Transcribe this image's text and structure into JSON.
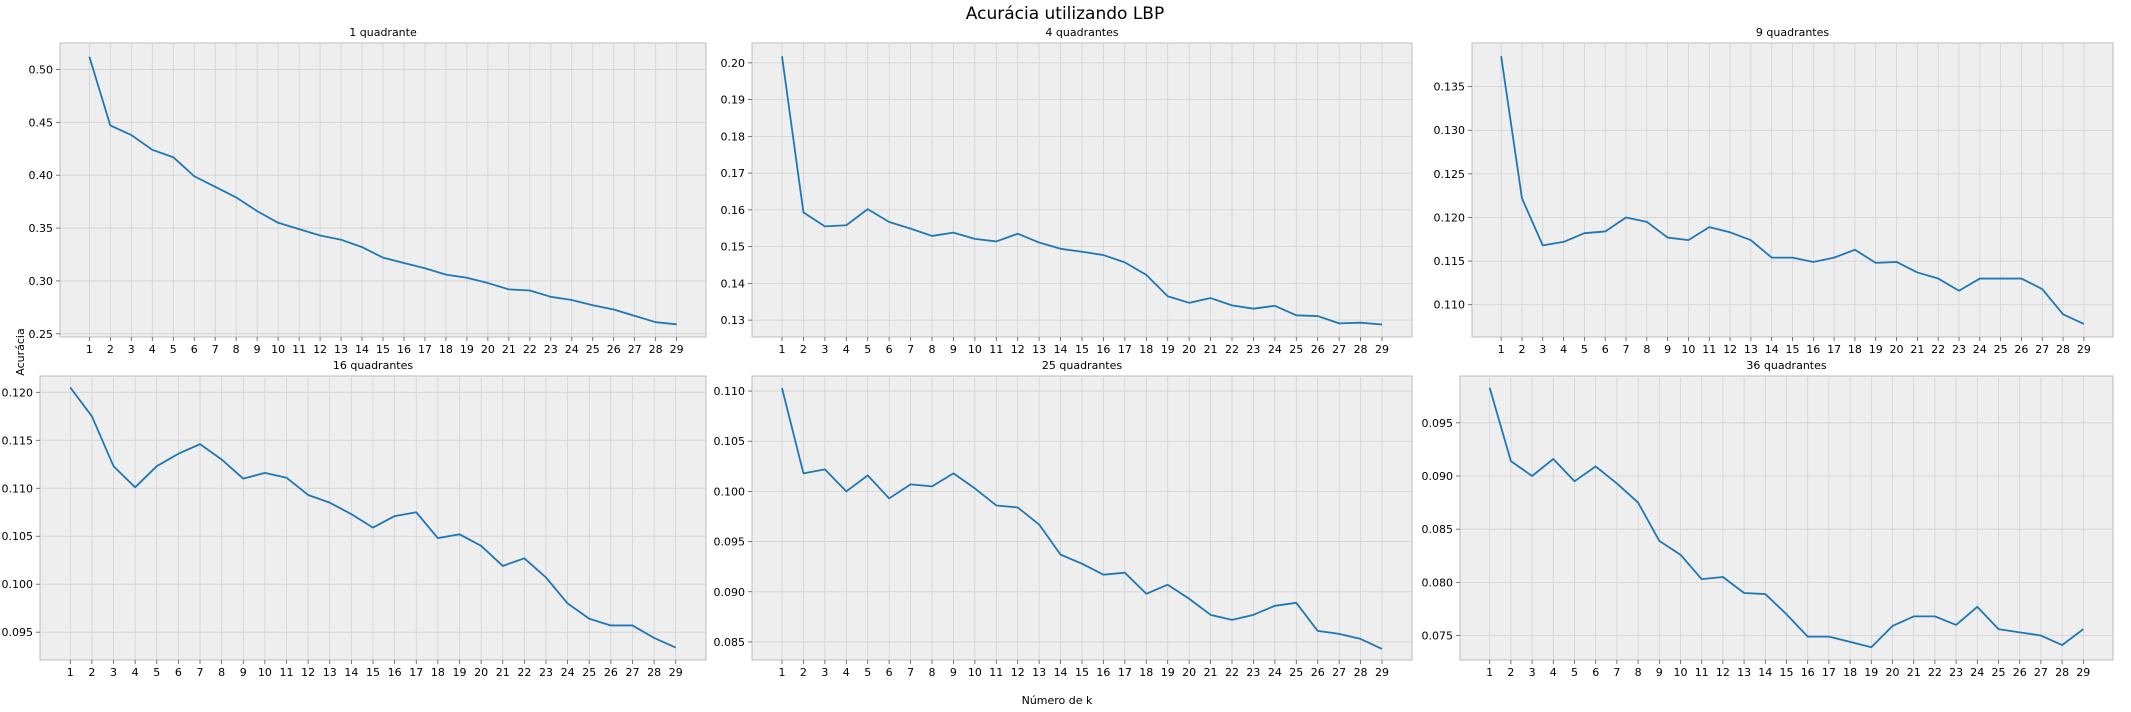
{
  "figure": {
    "title": "Acurácia utilizando LBP",
    "xlabel": "Número de k",
    "ylabel": "Acurácia"
  },
  "colors": {
    "line": "#1f77b4",
    "background": "#eeeeee",
    "grid": "#d2d2d2"
  },
  "chart_data": [
    {
      "type": "line",
      "title": "1 quadrante",
      "grid": true,
      "x": [
        1,
        2,
        3,
        4,
        5,
        6,
        7,
        8,
        9,
        10,
        11,
        12,
        13,
        14,
        15,
        16,
        17,
        18,
        19,
        20,
        21,
        22,
        23,
        24,
        25,
        26,
        27,
        28,
        29
      ],
      "series": [
        {
          "values": [
            0.512,
            0.447,
            0.438,
            0.424,
            0.417,
            0.399,
            0.389,
            0.379,
            0.366,
            0.355,
            0.349,
            0.343,
            0.339,
            0.332,
            0.322,
            0.317,
            0.312,
            0.306,
            0.303,
            0.298,
            0.292,
            0.291,
            0.285,
            0.282,
            0.277,
            0.273,
            0.267,
            0.261,
            0.259
          ]
        }
      ],
      "ylim": [
        0.247,
        0.525
      ],
      "yticks": [
        0.25,
        0.3,
        0.35,
        0.4,
        0.45,
        0.5
      ],
      "ytick_labels": [
        "0.25",
        "0.30",
        "0.35",
        "0.40",
        "0.45",
        "0.50"
      ]
    },
    {
      "type": "line",
      "title": "4 quadrantes",
      "grid": true,
      "x": [
        1,
        2,
        3,
        4,
        5,
        6,
        7,
        8,
        9,
        10,
        11,
        12,
        13,
        14,
        15,
        16,
        17,
        18,
        19,
        20,
        21,
        22,
        23,
        24,
        25,
        26,
        27,
        28,
        29
      ],
      "series": [
        {
          "values": [
            0.2018,
            0.1593,
            0.1555,
            0.1558,
            0.1602,
            0.1567,
            0.1549,
            0.1529,
            0.1538,
            0.1521,
            0.1514,
            0.1535,
            0.1511,
            0.1494,
            0.1486,
            0.1477,
            0.1457,
            0.1423,
            0.1365,
            0.1347,
            0.136,
            0.134,
            0.1331,
            0.1339,
            0.1313,
            0.1311,
            0.1291,
            0.1293,
            0.1288
          ]
        }
      ],
      "ylim": [
        0.1254,
        0.2054
      ],
      "yticks": [
        0.13,
        0.14,
        0.15,
        0.16,
        0.17,
        0.18,
        0.19,
        0.2
      ],
      "ytick_labels": [
        "0.13",
        "0.14",
        "0.15",
        "0.16",
        "0.17",
        "0.18",
        "0.19",
        "0.20"
      ]
    },
    {
      "type": "line",
      "title": "9 quadrantes",
      "grid": true,
      "x": [
        1,
        2,
        3,
        4,
        5,
        6,
        7,
        8,
        9,
        10,
        11,
        12,
        13,
        14,
        15,
        16,
        17,
        18,
        19,
        20,
        21,
        22,
        23,
        24,
        25,
        26,
        27,
        28,
        29
      ],
      "series": [
        {
          "values": [
            0.1385,
            0.1222,
            0.1168,
            0.1172,
            0.1182,
            0.1184,
            0.12,
            0.1195,
            0.1177,
            0.1174,
            0.1189,
            0.1183,
            0.1174,
            0.1154,
            0.1154,
            0.1149,
            0.1154,
            0.1163,
            0.1148,
            0.1149,
            0.1137,
            0.113,
            0.1116,
            0.113,
            0.113,
            0.113,
            0.1118,
            0.1089,
            0.1078
          ]
        }
      ],
      "ylim": [
        0.1063,
        0.14
      ],
      "yticks": [
        0.11,
        0.115,
        0.12,
        0.125,
        0.13,
        0.135
      ],
      "ytick_labels": [
        "0.110",
        "0.115",
        "0.120",
        "0.125",
        "0.130",
        "0.135"
      ]
    },
    {
      "type": "line",
      "title": "16 quadrantes",
      "grid": true,
      "x": [
        1,
        2,
        3,
        4,
        5,
        6,
        7,
        8,
        9,
        10,
        11,
        12,
        13,
        14,
        15,
        16,
        17,
        18,
        19,
        20,
        21,
        22,
        23,
        24,
        25,
        26,
        27,
        28,
        29
      ],
      "series": [
        {
          "values": [
            0.1205,
            0.1175,
            0.1123,
            0.1101,
            0.1123,
            0.1136,
            0.1146,
            0.113,
            0.111,
            0.1116,
            0.1111,
            0.1093,
            0.1085,
            0.1073,
            0.1059,
            0.1071,
            0.1075,
            0.1048,
            0.1052,
            0.104,
            0.1019,
            0.1027,
            0.1007,
            0.098,
            0.0964,
            0.0957,
            0.0957,
            0.0944,
            0.0934
          ]
        }
      ],
      "ylim": [
        0.0921,
        0.1217
      ],
      "yticks": [
        0.095,
        0.1,
        0.105,
        0.11,
        0.115,
        0.12
      ],
      "ytick_labels": [
        "0.095",
        "0.100",
        "0.105",
        "0.110",
        "0.115",
        "0.120"
      ]
    },
    {
      "type": "line",
      "title": "25 quadrantes",
      "grid": true,
      "x": [
        1,
        2,
        3,
        4,
        5,
        6,
        7,
        8,
        9,
        10,
        11,
        12,
        13,
        14,
        15,
        16,
        17,
        18,
        19,
        20,
        21,
        22,
        23,
        24,
        25,
        26,
        27,
        28,
        29
      ],
      "series": [
        {
          "values": [
            0.1103,
            0.1018,
            0.1022,
            0.1,
            0.1016,
            0.0993,
            0.1007,
            0.1005,
            0.1018,
            0.1003,
            0.0986,
            0.0984,
            0.0967,
            0.0937,
            0.0928,
            0.0917,
            0.0919,
            0.0898,
            0.0907,
            0.0893,
            0.0877,
            0.0872,
            0.0877,
            0.0886,
            0.0889,
            0.0861,
            0.0858,
            0.0853,
            0.0843
          ]
        }
      ],
      "ylim": [
        0.0832,
        0.1115
      ],
      "yticks": [
        0.085,
        0.09,
        0.095,
        0.1,
        0.105,
        0.11
      ],
      "ytick_labels": [
        "0.085",
        "0.090",
        "0.095",
        "0.100",
        "0.105",
        "0.110"
      ]
    },
    {
      "type": "line",
      "title": "36 quadrantes",
      "grid": true,
      "x": [
        1,
        2,
        3,
        4,
        5,
        6,
        7,
        8,
        9,
        10,
        11,
        12,
        13,
        14,
        15,
        16,
        17,
        18,
        19,
        20,
        21,
        22,
        23,
        24,
        25,
        26,
        27,
        28,
        29
      ],
      "series": [
        {
          "values": [
            0.0983,
            0.0914,
            0.09,
            0.0916,
            0.0895,
            0.0909,
            0.0893,
            0.0875,
            0.0839,
            0.0826,
            0.0803,
            0.0805,
            0.079,
            0.0789,
            0.077,
            0.0749,
            0.0749,
            0.0744,
            0.0739,
            0.0759,
            0.0768,
            0.0768,
            0.076,
            0.0777,
            0.0756,
            0.0753,
            0.075,
            0.0741,
            0.0756
          ]
        }
      ],
      "ylim": [
        0.0727,
        0.0994
      ],
      "yticks": [
        0.075,
        0.08,
        0.085,
        0.09,
        0.095
      ],
      "ytick_labels": [
        "0.075",
        "0.080",
        "0.085",
        "0.090",
        "0.095"
      ]
    }
  ]
}
